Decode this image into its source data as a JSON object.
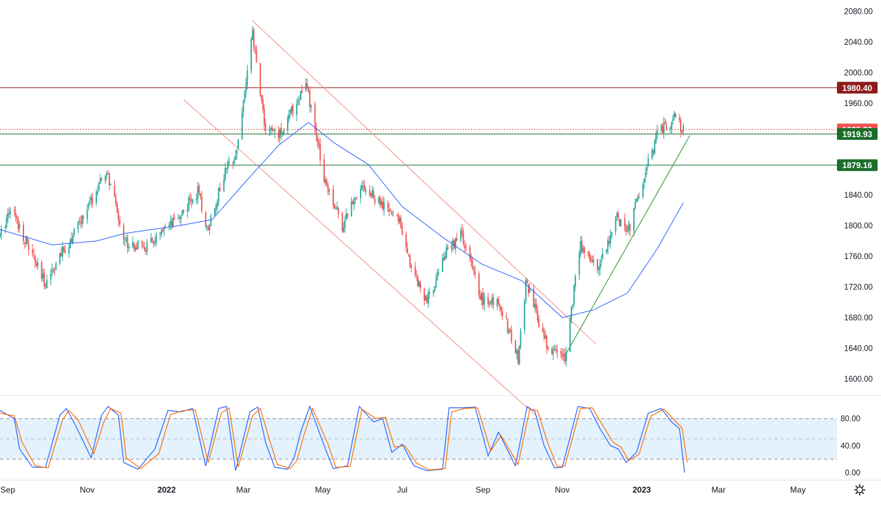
{
  "colors": {
    "up": "#26a69a",
    "down": "#ef5350",
    "ma": "#2962ff",
    "channel": "#f28b82",
    "trend": "#43a047",
    "resistance": "#8e1b1b",
    "support": "#1b6e2a",
    "current": "#ef5350",
    "stoch_k": "#2962ff",
    "stoch_d": "#ff6d00",
    "stoch_band": "#e3f2fd"
  },
  "chart_data": [
    {
      "type": "candlestick",
      "title": "",
      "x_range": [
        "2021-08-26",
        "2023-05-31"
      ],
      "ylim": [
        1580,
        2095
      ],
      "y_ticks": [
        "1600.00",
        "1640.00",
        "1680.00",
        "1720.00",
        "1760.00",
        "1800.00",
        "1840.00",
        "1880.00",
        "1920.00",
        "1960.00",
        "2000.00",
        "2040.00",
        "2080.00"
      ],
      "x_ticks": [
        "Sep",
        "Nov",
        "2022",
        "Mar",
        "May",
        "Jul",
        "Sep",
        "Nov",
        "2023",
        "Mar",
        "May"
      ],
      "price_path": [
        [
          "2021-08-26",
          1785
        ],
        [
          "2021-09-03",
          1826
        ],
        [
          "2021-09-29",
          1725
        ],
        [
          "2021-10-22",
          1790
        ],
        [
          "2021-11-16",
          1870
        ],
        [
          "2021-11-30",
          1780
        ],
        [
          "2021-12-15",
          1770
        ],
        [
          "2022-01-05",
          1800
        ],
        [
          "2022-01-25",
          1845
        ],
        [
          "2022-02-01",
          1795
        ],
        [
          "2022-02-15",
          1870
        ],
        [
          "2022-02-24",
          1900
        ],
        [
          "2022-03-08",
          2050
        ],
        [
          "2022-03-18",
          1925
        ],
        [
          "2022-03-29",
          1920
        ],
        [
          "2022-04-18",
          1985
        ],
        [
          "2022-05-02",
          1865
        ],
        [
          "2022-05-16",
          1800
        ],
        [
          "2022-05-30",
          1855
        ],
        [
          "2022-06-13",
          1830
        ],
        [
          "2022-06-30",
          1805
        ],
        [
          "2022-07-05",
          1760
        ],
        [
          "2022-07-20",
          1700
        ],
        [
          "2022-08-02",
          1760
        ],
        [
          "2022-08-15",
          1790
        ],
        [
          "2022-09-01",
          1700
        ],
        [
          "2022-09-14",
          1700
        ],
        [
          "2022-09-28",
          1625
        ],
        [
          "2022-10-04",
          1725
        ],
        [
          "2022-10-21",
          1640
        ],
        [
          "2022-11-03",
          1630
        ],
        [
          "2022-11-15",
          1775
        ],
        [
          "2022-11-28",
          1745
        ],
        [
          "2022-12-13",
          1810
        ],
        [
          "2022-12-22",
          1795
        ],
        [
          "2023-01-13",
          1920
        ],
        [
          "2023-01-26",
          1940
        ],
        [
          "2023-02-02",
          1925
        ]
      ],
      "ma_path": [
        [
          "2021-08-26",
          1795
        ],
        [
          "2021-10-05",
          1775
        ],
        [
          "2021-11-08",
          1780
        ],
        [
          "2021-11-30",
          1790
        ],
        [
          "2022-01-10",
          1800
        ],
        [
          "2022-02-05",
          1808
        ],
        [
          "2022-03-04",
          1860
        ],
        [
          "2022-03-28",
          1905
        ],
        [
          "2022-04-20",
          1935
        ],
        [
          "2022-05-10",
          1908
        ],
        [
          "2022-06-05",
          1880
        ],
        [
          "2022-07-01",
          1825
        ],
        [
          "2022-08-01",
          1785
        ],
        [
          "2022-08-31",
          1750
        ],
        [
          "2022-10-01",
          1728
        ],
        [
          "2022-11-01",
          1680
        ],
        [
          "2022-11-25",
          1690
        ],
        [
          "2022-12-21",
          1712
        ],
        [
          "2023-01-13",
          1770
        ],
        [
          "2023-02-02",
          1830
        ]
      ],
      "last_close_date": "2023-02-02",
      "levels": [
        {
          "label": "1980.40",
          "value": 1980.4,
          "kind": "resistance"
        },
        {
          "label": "1925.80",
          "value": 1925.8,
          "kind": "current"
        },
        {
          "label": "1919.93",
          "value": 1919.93,
          "kind": "support"
        },
        {
          "label": "1879.16",
          "value": 1879.16,
          "kind": "support"
        }
      ],
      "channel_lines": [
        {
          "from": [
            "2022-03-08",
            2068
          ],
          "to": [
            "2022-11-27",
            1645
          ]
        },
        {
          "from": [
            "2022-01-14",
            1965
          ],
          "to": [
            "2022-10-13",
            1550
          ]
        }
      ],
      "trend_line": {
        "from": [
          "2022-11-03",
          1630
        ],
        "to": [
          "2023-02-07",
          1918
        ]
      },
      "grid": false
    },
    {
      "type": "line",
      "title": "",
      "ylim": [
        0,
        100
      ],
      "y_ticks": [
        "0.00",
        "40.00",
        "80.00"
      ],
      "band": [
        20,
        80
      ],
      "ref_lines": [
        20,
        50,
        80
      ],
      "series": [
        {
          "key": "k",
          "points": [
            [
              "2021-08-26",
              92
            ],
            [
              "2021-09-06",
              80
            ],
            [
              "2021-09-10",
              35
            ],
            [
              "2021-09-20",
              8
            ],
            [
              "2021-09-30",
              8
            ],
            [
              "2021-10-11",
              85
            ],
            [
              "2021-10-16",
              95
            ],
            [
              "2021-10-23",
              70
            ],
            [
              "2021-11-04",
              22
            ],
            [
              "2021-11-12",
              85
            ],
            [
              "2021-11-17",
              98
            ],
            [
              "2021-11-25",
              85
            ],
            [
              "2021-11-29",
              15
            ],
            [
              "2021-12-10",
              5
            ],
            [
              "2021-12-23",
              35
            ],
            [
              "2022-01-02",
              92
            ],
            [
              "2022-01-12",
              90
            ],
            [
              "2022-01-21",
              95
            ],
            [
              "2022-01-31",
              10
            ],
            [
              "2022-02-10",
              95
            ],
            [
              "2022-02-16",
              98
            ],
            [
              "2022-02-23",
              3
            ],
            [
              "2022-03-06",
              90
            ],
            [
              "2022-03-12",
              97
            ],
            [
              "2022-03-18",
              45
            ],
            [
              "2022-03-25",
              8
            ],
            [
              "2022-04-04",
              5
            ],
            [
              "2022-04-09",
              22
            ],
            [
              "2022-04-14",
              60
            ],
            [
              "2022-04-21",
              98
            ],
            [
              "2022-05-03",
              35
            ],
            [
              "2022-05-09",
              6
            ],
            [
              "2022-05-20",
              10
            ],
            [
              "2022-05-29",
              98
            ],
            [
              "2022-06-09",
              75
            ],
            [
              "2022-06-16",
              80
            ],
            [
              "2022-06-23",
              30
            ],
            [
              "2022-07-01",
              42
            ],
            [
              "2022-07-10",
              10
            ],
            [
              "2022-07-20",
              3
            ],
            [
              "2022-08-01",
              5
            ],
            [
              "2022-08-06",
              96
            ],
            [
              "2022-08-16",
              96
            ],
            [
              "2022-08-26",
              97
            ],
            [
              "2022-09-05",
              25
            ],
            [
              "2022-09-13",
              60
            ],
            [
              "2022-09-26",
              10
            ],
            [
              "2022-10-05",
              98
            ],
            [
              "2022-10-11",
              90
            ],
            [
              "2022-10-18",
              40
            ],
            [
              "2022-10-26",
              7
            ],
            [
              "2022-11-01",
              8
            ],
            [
              "2022-11-13",
              98
            ],
            [
              "2022-11-22",
              95
            ],
            [
              "2022-11-30",
              65
            ],
            [
              "2022-12-08",
              40
            ],
            [
              "2022-12-14",
              35
            ],
            [
              "2022-12-20",
              15
            ],
            [
              "2022-12-28",
              30
            ],
            [
              "2023-01-06",
              88
            ],
            [
              "2023-01-16",
              95
            ],
            [
              "2023-01-24",
              75
            ],
            [
              "2023-01-30",
              65
            ],
            [
              "2023-02-03",
              0
            ]
          ]
        },
        {
          "key": "d",
          "points": [
            [
              "2021-08-26",
              88
            ],
            [
              "2021-09-06",
              84
            ],
            [
              "2021-09-12",
              45
            ],
            [
              "2021-09-22",
              10
            ],
            [
              "2021-10-02",
              7
            ],
            [
              "2021-10-13",
              78
            ],
            [
              "2021-10-18",
              92
            ],
            [
              "2021-10-25",
              78
            ],
            [
              "2021-11-06",
              28
            ],
            [
              "2021-11-14",
              76
            ],
            [
              "2021-11-19",
              95
            ],
            [
              "2021-11-27",
              88
            ],
            [
              "2021-12-01",
              22
            ],
            [
              "2021-12-12",
              6
            ],
            [
              "2021-12-26",
              28
            ],
            [
              "2022-01-04",
              86
            ],
            [
              "2022-01-14",
              92
            ],
            [
              "2022-01-23",
              93
            ],
            [
              "2022-02-02",
              15
            ],
            [
              "2022-02-12",
              88
            ],
            [
              "2022-02-18",
              96
            ],
            [
              "2022-02-25",
              8
            ],
            [
              "2022-03-08",
              84
            ],
            [
              "2022-03-14",
              95
            ],
            [
              "2022-03-20",
              55
            ],
            [
              "2022-03-27",
              12
            ],
            [
              "2022-04-06",
              6
            ],
            [
              "2022-04-11",
              18
            ],
            [
              "2022-04-16",
              52
            ],
            [
              "2022-04-23",
              95
            ],
            [
              "2022-05-05",
              42
            ],
            [
              "2022-05-11",
              8
            ],
            [
              "2022-05-22",
              9
            ],
            [
              "2022-05-31",
              94
            ],
            [
              "2022-06-11",
              80
            ],
            [
              "2022-06-18",
              82
            ],
            [
              "2022-06-25",
              38
            ],
            [
              "2022-07-03",
              40
            ],
            [
              "2022-07-12",
              14
            ],
            [
              "2022-07-22",
              4
            ],
            [
              "2022-08-03",
              6
            ],
            [
              "2022-08-08",
              90
            ],
            [
              "2022-08-18",
              95
            ],
            [
              "2022-08-28",
              96
            ],
            [
              "2022-09-07",
              32
            ],
            [
              "2022-09-15",
              55
            ],
            [
              "2022-09-28",
              12
            ],
            [
              "2022-10-07",
              94
            ],
            [
              "2022-10-13",
              92
            ],
            [
              "2022-10-20",
              48
            ],
            [
              "2022-10-28",
              9
            ],
            [
              "2022-11-03",
              10
            ],
            [
              "2022-11-15",
              95
            ],
            [
              "2022-11-24",
              96
            ],
            [
              "2022-12-02",
              70
            ],
            [
              "2022-12-10",
              45
            ],
            [
              "2022-12-16",
              38
            ],
            [
              "2022-12-22",
              18
            ],
            [
              "2022-12-30",
              27
            ],
            [
              "2023-01-08",
              84
            ],
            [
              "2023-01-18",
              94
            ],
            [
              "2023-01-26",
              78
            ],
            [
              "2023-02-01",
              66
            ],
            [
              "2023-02-05",
              15
            ]
          ]
        }
      ]
    }
  ]
}
